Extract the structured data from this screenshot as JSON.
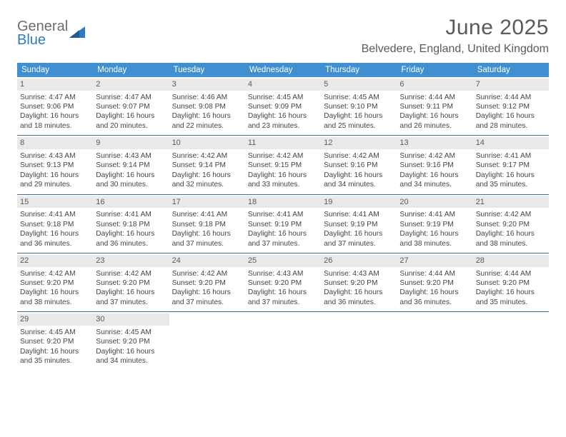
{
  "logo": {
    "text1": "General",
    "text2": "Blue"
  },
  "title": "June 2025",
  "location": "Belvedere, England, United Kingdom",
  "colors": {
    "header_bg": "#3f8fd1",
    "header_text": "#ffffff",
    "daynum_bg": "#e9e9e9",
    "week_border": "#3f6fa0",
    "logo_gray": "#6d6d6d",
    "logo_blue": "#2f7bbf"
  },
  "daysOfWeek": [
    "Sunday",
    "Monday",
    "Tuesday",
    "Wednesday",
    "Thursday",
    "Friday",
    "Saturday"
  ],
  "weeks": [
    [
      {
        "n": "1",
        "sunrise": "4:47 AM",
        "sunset": "9:06 PM",
        "daylight": "16 hours and 18 minutes."
      },
      {
        "n": "2",
        "sunrise": "4:47 AM",
        "sunset": "9:07 PM",
        "daylight": "16 hours and 20 minutes."
      },
      {
        "n": "3",
        "sunrise": "4:46 AM",
        "sunset": "9:08 PM",
        "daylight": "16 hours and 22 minutes."
      },
      {
        "n": "4",
        "sunrise": "4:45 AM",
        "sunset": "9:09 PM",
        "daylight": "16 hours and 23 minutes."
      },
      {
        "n": "5",
        "sunrise": "4:45 AM",
        "sunset": "9:10 PM",
        "daylight": "16 hours and 25 minutes."
      },
      {
        "n": "6",
        "sunrise": "4:44 AM",
        "sunset": "9:11 PM",
        "daylight": "16 hours and 26 minutes."
      },
      {
        "n": "7",
        "sunrise": "4:44 AM",
        "sunset": "9:12 PM",
        "daylight": "16 hours and 28 minutes."
      }
    ],
    [
      {
        "n": "8",
        "sunrise": "4:43 AM",
        "sunset": "9:13 PM",
        "daylight": "16 hours and 29 minutes."
      },
      {
        "n": "9",
        "sunrise": "4:43 AM",
        "sunset": "9:14 PM",
        "daylight": "16 hours and 30 minutes."
      },
      {
        "n": "10",
        "sunrise": "4:42 AM",
        "sunset": "9:14 PM",
        "daylight": "16 hours and 32 minutes."
      },
      {
        "n": "11",
        "sunrise": "4:42 AM",
        "sunset": "9:15 PM",
        "daylight": "16 hours and 33 minutes."
      },
      {
        "n": "12",
        "sunrise": "4:42 AM",
        "sunset": "9:16 PM",
        "daylight": "16 hours and 34 minutes."
      },
      {
        "n": "13",
        "sunrise": "4:42 AM",
        "sunset": "9:16 PM",
        "daylight": "16 hours and 34 minutes."
      },
      {
        "n": "14",
        "sunrise": "4:41 AM",
        "sunset": "9:17 PM",
        "daylight": "16 hours and 35 minutes."
      }
    ],
    [
      {
        "n": "15",
        "sunrise": "4:41 AM",
        "sunset": "9:18 PM",
        "daylight": "16 hours and 36 minutes."
      },
      {
        "n": "16",
        "sunrise": "4:41 AM",
        "sunset": "9:18 PM",
        "daylight": "16 hours and 36 minutes."
      },
      {
        "n": "17",
        "sunrise": "4:41 AM",
        "sunset": "9:18 PM",
        "daylight": "16 hours and 37 minutes."
      },
      {
        "n": "18",
        "sunrise": "4:41 AM",
        "sunset": "9:19 PM",
        "daylight": "16 hours and 37 minutes."
      },
      {
        "n": "19",
        "sunrise": "4:41 AM",
        "sunset": "9:19 PM",
        "daylight": "16 hours and 37 minutes."
      },
      {
        "n": "20",
        "sunrise": "4:41 AM",
        "sunset": "9:19 PM",
        "daylight": "16 hours and 38 minutes."
      },
      {
        "n": "21",
        "sunrise": "4:42 AM",
        "sunset": "9:20 PM",
        "daylight": "16 hours and 38 minutes."
      }
    ],
    [
      {
        "n": "22",
        "sunrise": "4:42 AM",
        "sunset": "9:20 PM",
        "daylight": "16 hours and 38 minutes."
      },
      {
        "n": "23",
        "sunrise": "4:42 AM",
        "sunset": "9:20 PM",
        "daylight": "16 hours and 37 minutes."
      },
      {
        "n": "24",
        "sunrise": "4:42 AM",
        "sunset": "9:20 PM",
        "daylight": "16 hours and 37 minutes."
      },
      {
        "n": "25",
        "sunrise": "4:43 AM",
        "sunset": "9:20 PM",
        "daylight": "16 hours and 37 minutes."
      },
      {
        "n": "26",
        "sunrise": "4:43 AM",
        "sunset": "9:20 PM",
        "daylight": "16 hours and 36 minutes."
      },
      {
        "n": "27",
        "sunrise": "4:44 AM",
        "sunset": "9:20 PM",
        "daylight": "16 hours and 36 minutes."
      },
      {
        "n": "28",
        "sunrise": "4:44 AM",
        "sunset": "9:20 PM",
        "daylight": "16 hours and 35 minutes."
      }
    ],
    [
      {
        "n": "29",
        "sunrise": "4:45 AM",
        "sunset": "9:20 PM",
        "daylight": "16 hours and 35 minutes."
      },
      {
        "n": "30",
        "sunrise": "4:45 AM",
        "sunset": "9:20 PM",
        "daylight": "16 hours and 34 minutes."
      },
      null,
      null,
      null,
      null,
      null
    ]
  ],
  "labels": {
    "sunrise": "Sunrise: ",
    "sunset": "Sunset: ",
    "daylight": "Daylight: "
  }
}
